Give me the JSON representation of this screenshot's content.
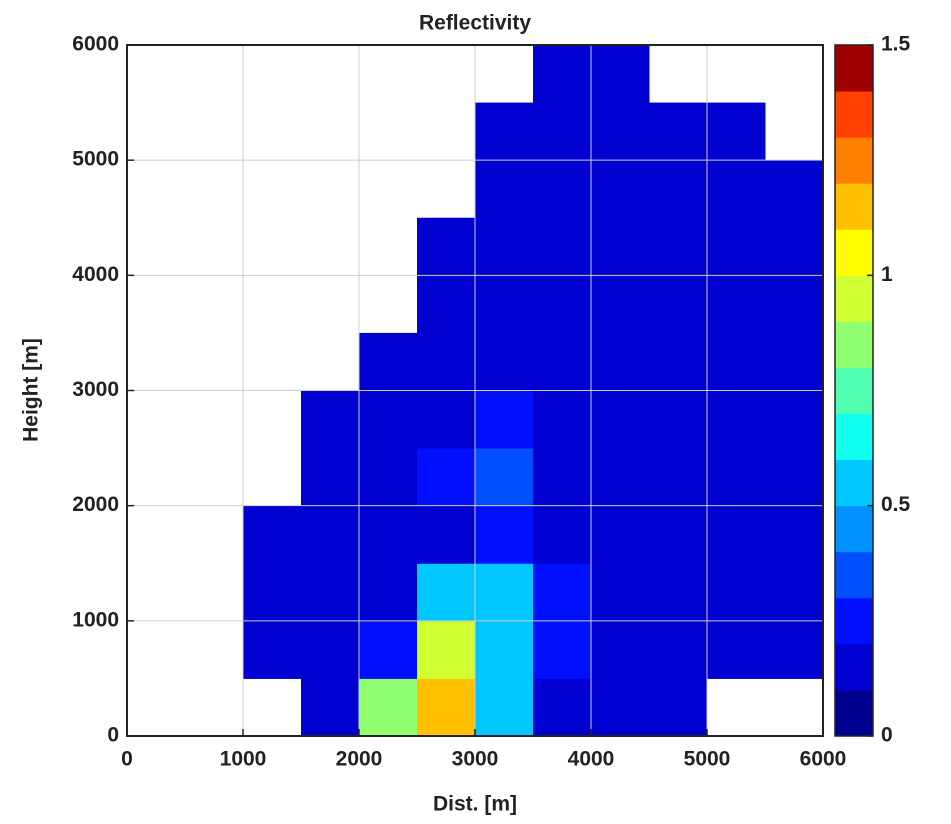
{
  "chart_data": {
    "type": "heatmap",
    "title": "Reflectivity",
    "x_label": "Dist. [m]",
    "y_label": "Height [m]",
    "x": [
      250,
      750,
      1250,
      1750,
      2250,
      2750,
      3250,
      3750,
      4250,
      4750,
      5250,
      5750
    ],
    "y": [
      250,
      750,
      1250,
      1750,
      2250,
      2750,
      3250,
      3750,
      4250,
      4750,
      5250,
      5750
    ],
    "z": [
      [
        null,
        null,
        null,
        0.1,
        0.8,
        1.2,
        0.5,
        0.1,
        0.1,
        0.1,
        null,
        null
      ],
      [
        null,
        null,
        0.1,
        0.1,
        0.3,
        0.9,
        0.6,
        0.2,
        0.1,
        0.1,
        0.1,
        0.1
      ],
      [
        null,
        null,
        0.1,
        0.1,
        0.1,
        0.5,
        0.55,
        0.3,
        0.1,
        0.1,
        0.1,
        0.1
      ],
      [
        null,
        null,
        0.1,
        0.1,
        0.1,
        0.1,
        0.2,
        0.1,
        0.1,
        0.1,
        0.1,
        0.1
      ],
      [
        null,
        null,
        null,
        0.1,
        0.15,
        0.2,
        0.35,
        0.15,
        0.15,
        0.15,
        0.15,
        0.15
      ],
      [
        null,
        null,
        null,
        0.1,
        0.1,
        0.1,
        0.2,
        0.1,
        0.1,
        0.1,
        0.1,
        0.1
      ],
      [
        null,
        null,
        null,
        null,
        0.1,
        0.1,
        0.1,
        0.1,
        0.1,
        0.1,
        0.1,
        0.1
      ],
      [
        null,
        null,
        null,
        null,
        null,
        0.1,
        0.1,
        0.1,
        0.1,
        0.1,
        0.1,
        0.1
      ],
      [
        null,
        null,
        null,
        null,
        null,
        0.1,
        0.1,
        0.1,
        0.1,
        0.1,
        0.1,
        0.1
      ],
      [
        null,
        null,
        null,
        null,
        null,
        null,
        0.1,
        0.1,
        0.1,
        0.1,
        0.1,
        0.1
      ],
      [
        null,
        null,
        null,
        null,
        null,
        null,
        0.1,
        0.1,
        0.1,
        0.1,
        0.1,
        null
      ],
      [
        null,
        null,
        null,
        null,
        null,
        null,
        null,
        0.1,
        0.1,
        null,
        null,
        null
      ]
    ],
    "xlim": [
      0,
      6000
    ],
    "ylim": [
      0,
      6000
    ],
    "xticks": [
      0,
      1000,
      2000,
      3000,
      4000,
      5000,
      6000
    ],
    "yticks": [
      0,
      1000,
      2000,
      3000,
      4000,
      5000,
      6000
    ],
    "grid": true,
    "clim": [
      0,
      1.5
    ],
    "cticks": [
      0,
      0.5,
      1,
      1.5
    ],
    "colormap": [
      "#000090",
      "#0000d0",
      "#0010ff",
      "#0050ff",
      "#0090ff",
      "#00c8ff",
      "#10ffef",
      "#50ffaf",
      "#90ff6f",
      "#cfff30",
      "#ffff00",
      "#ffc000",
      "#ff8000",
      "#ff4000",
      "#a00000"
    ]
  }
}
